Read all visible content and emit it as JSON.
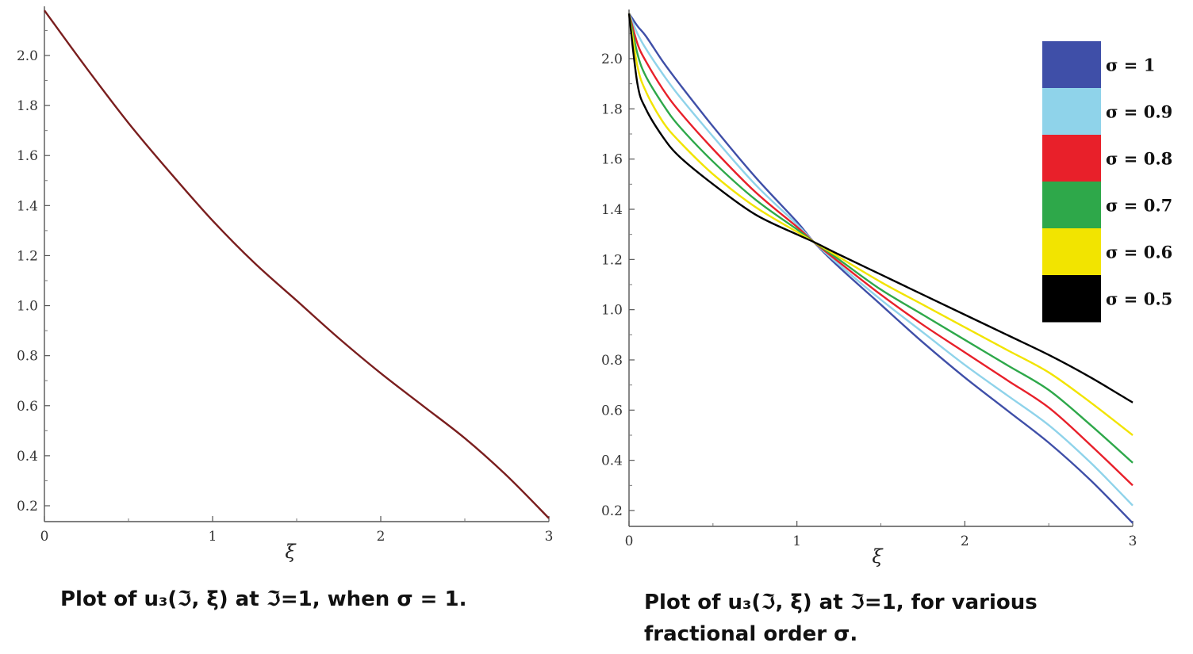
{
  "chart_data": [
    {
      "type": "line",
      "caption": "Plot of u₃(ℑ, ξ) at ℑ=1, when σ = 1.",
      "xlabel": "ξ",
      "ylabel": "",
      "xlim": [
        0,
        3
      ],
      "ylim": [
        0.13,
        2.2
      ],
      "x_ticks": [
        "0",
        "1",
        "2",
        "3"
      ],
      "y_ticks": [
        "0.2",
        "0.4",
        "0.6",
        "0.8",
        "1.0",
        "1.2",
        "1.4",
        "1.6",
        "1.8",
        "2.0"
      ],
      "color": "#7a1e1e",
      "x": [
        0,
        0.25,
        0.5,
        0.75,
        1.0,
        1.25,
        1.5,
        1.75,
        2.0,
        2.25,
        2.5,
        2.75,
        3.0
      ],
      "y": [
        2.18,
        1.95,
        1.73,
        1.53,
        1.34,
        1.17,
        1.02,
        0.87,
        0.73,
        0.6,
        0.47,
        0.32,
        0.15
      ]
    },
    {
      "type": "line",
      "caption": "Plot of u₃(ℑ, ξ) at ℑ=1, for various\nfractional order σ.",
      "xlabel": "ξ",
      "ylabel": "",
      "xlim": [
        0,
        3
      ],
      "ylim": [
        0.13,
        2.2
      ],
      "x_ticks": [
        "0",
        "1",
        "2",
        "3"
      ],
      "y_ticks": [
        "0.2",
        "0.4",
        "0.6",
        "0.8",
        "1.0",
        "1.2",
        "1.4",
        "1.6",
        "1.8",
        "2.0"
      ],
      "legend_position": "top-right",
      "x": [
        0,
        0.05,
        0.1,
        0.2,
        0.3,
        0.5,
        0.75,
        1.0,
        1.1,
        1.25,
        1.5,
        1.75,
        2.0,
        2.25,
        2.5,
        2.75,
        3.0
      ],
      "series": [
        {
          "name": "σ = 1",
          "color": "#3f4fa8",
          "values": [
            2.18,
            2.13,
            2.09,
            1.99,
            1.9,
            1.73,
            1.53,
            1.35,
            1.27,
            1.17,
            1.02,
            0.87,
            0.73,
            0.6,
            0.47,
            0.32,
            0.15
          ]
        },
        {
          "name": "σ = 0.9",
          "color": "#8fd3ea",
          "values": [
            2.18,
            2.1,
            2.04,
            1.94,
            1.85,
            1.69,
            1.5,
            1.34,
            1.27,
            1.18,
            1.04,
            0.91,
            0.78,
            0.66,
            0.54,
            0.39,
            0.22
          ]
        },
        {
          "name": "σ = 0.8",
          "color": "#e8202a",
          "values": [
            2.18,
            2.06,
            1.99,
            1.88,
            1.79,
            1.64,
            1.47,
            1.33,
            1.27,
            1.19,
            1.06,
            0.94,
            0.83,
            0.72,
            0.61,
            0.46,
            0.3
          ]
        },
        {
          "name": "σ = 0.7",
          "color": "#2ea84a",
          "values": [
            2.18,
            2.02,
            1.93,
            1.82,
            1.73,
            1.59,
            1.44,
            1.32,
            1.27,
            1.2,
            1.08,
            0.98,
            0.88,
            0.78,
            0.68,
            0.54,
            0.39
          ]
        },
        {
          "name": "σ = 0.6",
          "color": "#f2e400",
          "values": [
            2.18,
            1.97,
            1.87,
            1.75,
            1.67,
            1.54,
            1.41,
            1.31,
            1.27,
            1.21,
            1.11,
            1.02,
            0.93,
            0.84,
            0.75,
            0.63,
            0.5
          ]
        },
        {
          "name": "σ = 0.5",
          "color": "#000000",
          "values": [
            2.18,
            1.9,
            1.8,
            1.69,
            1.61,
            1.5,
            1.38,
            1.3,
            1.27,
            1.22,
            1.14,
            1.06,
            0.98,
            0.9,
            0.82,
            0.73,
            0.63
          ]
        }
      ]
    }
  ]
}
